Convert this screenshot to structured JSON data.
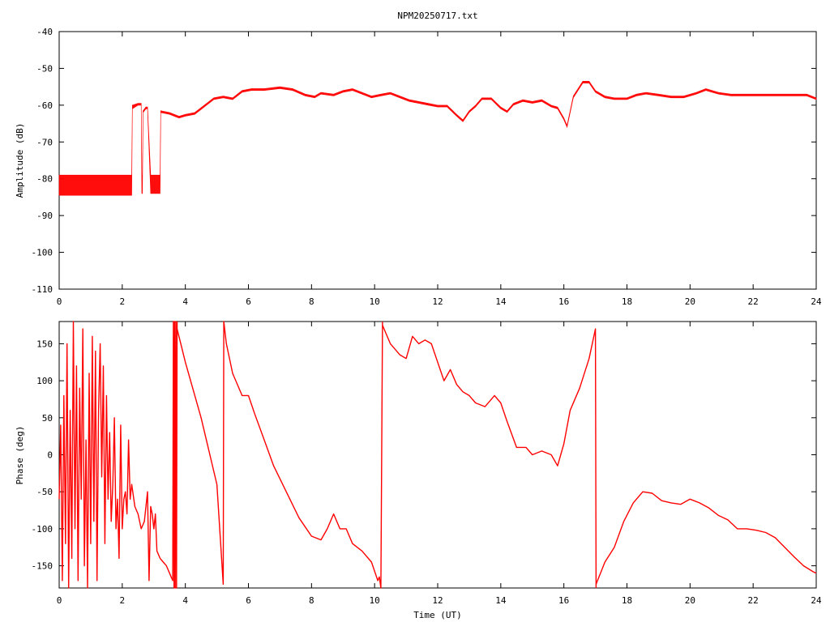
{
  "chart_data": [
    {
      "type": "line",
      "title": "NPM20250717.txt",
      "xlabel": "",
      "ylabel": "Amplitude (dB)",
      "xlim": [
        0,
        24
      ],
      "ylim": [
        -110,
        -40
      ],
      "xticks": [
        "0",
        "2",
        "4",
        "6",
        "8",
        "10",
        "12",
        "14",
        "16",
        "18",
        "20",
        "22",
        "24"
      ],
      "yticks": [
        "-40",
        "-50",
        "-60",
        "-70",
        "-80",
        "-90",
        "-100",
        "-110"
      ],
      "grid": false,
      "color": "#ff0000",
      "series": [
        {
          "x": [
            0,
            0.5,
            1,
            1.5,
            2,
            2.3,
            2.32,
            2.5,
            2.6,
            2.62,
            2.64,
            2.66,
            2.75,
            2.8,
            2.9,
            3.0,
            3.2,
            3.22,
            3.5,
            3.8,
            4.0,
            4.3,
            4.6,
            4.9,
            5.2,
            5.5,
            5.8,
            6.1,
            6.5,
            7.0,
            7.4,
            7.8,
            8.1,
            8.3,
            8.7,
            9.0,
            9.3,
            9.6,
            9.9,
            10.2,
            10.5,
            10.8,
            11.1,
            11.4,
            11.7,
            12.0,
            12.3,
            12.6,
            12.8,
            13.0,
            13.2,
            13.4,
            13.7,
            14.0,
            14.2,
            14.4,
            14.7,
            15.0,
            15.3,
            15.6,
            15.8,
            16.0,
            16.1,
            16.3,
            16.6,
            16.8,
            17.0,
            17.3,
            17.6,
            18.0,
            18.3,
            18.6,
            19.0,
            19.4,
            19.8,
            20.2,
            20.5,
            20.9,
            21.3,
            21.7,
            22.1,
            22.5,
            22.9,
            23.3,
            23.7,
            24.0
          ],
          "amp_low": [
            -84.5,
            -84.5,
            -84.5,
            -84.5,
            -84.5,
            -84.5,
            -61,
            -60,
            -60,
            -84,
            -84,
            -62,
            -61,
            -61,
            -84,
            -84,
            -84,
            -62,
            -62.5,
            -63.5,
            -63,
            -62.5,
            -60.5,
            -58.5,
            -58,
            -58.5,
            -56.5,
            -56,
            -56,
            -55.5,
            -56,
            -57.5,
            -58,
            -57,
            -57.5,
            -56.5,
            -56,
            -57,
            -58,
            -57.5,
            -57,
            -58,
            -59,
            -59.5,
            -60,
            -60.5,
            -60.5,
            -63,
            -64.5,
            -62,
            -60.5,
            -58.5,
            -58.5,
            -61,
            -62,
            -60,
            -59,
            -59.5,
            -59,
            -60.5,
            -61,
            -64,
            -66,
            -58,
            -54,
            -54,
            -56.5,
            -58,
            -58.5,
            -58.5,
            -57.5,
            -57,
            -57.5,
            -58,
            -58,
            -57,
            -56,
            -57,
            -57.5,
            -57.5,
            -57.5,
            -57.5,
            -57.5,
            -57.5,
            -57.5,
            -58.5
          ],
          "amp_high": [
            -79,
            -79,
            -79,
            -79,
            -79,
            -79,
            -60,
            -59.5,
            -59.5,
            -79,
            -79,
            -61.5,
            -60.5,
            -60.5,
            -79,
            -79,
            -79,
            -61.5,
            -62,
            -63,
            -62.5,
            -62,
            -60,
            -58,
            -57.5,
            -58,
            -56,
            -55.5,
            -55.5,
            -55,
            -55.5,
            -57,
            -57.5,
            -56.5,
            -57,
            -56,
            -55.5,
            -56.5,
            -57.5,
            -57,
            -56.5,
            -57.5,
            -58.5,
            -59,
            -59.5,
            -60,
            -60,
            -62.5,
            -64,
            -61.5,
            -60,
            -58,
            -58,
            -60.5,
            -61.5,
            -59.5,
            -58.5,
            -59,
            -58.5,
            -60,
            -60.5,
            -63.5,
            -65.5,
            -57.5,
            -53.5,
            -53.5,
            -56,
            -57.5,
            -58,
            -58,
            -57,
            -56.5,
            -57,
            -57.5,
            -57.5,
            -56.5,
            -55.5,
            -56.5,
            -57,
            -57,
            -57,
            -57,
            -57,
            -57,
            -57,
            -58
          ]
        }
      ]
    },
    {
      "type": "line",
      "title": "",
      "xlabel": "Time (UT)",
      "ylabel": "Phase (deg)",
      "xlim": [
        0,
        24
      ],
      "ylim": [
        -180,
        180
      ],
      "xticks": [
        "0",
        "2",
        "4",
        "6",
        "8",
        "10",
        "12",
        "14",
        "16",
        "18",
        "20",
        "22",
        "24"
      ],
      "yticks": [
        "150",
        "100",
        "50",
        "0",
        "-50",
        "-100",
        "-150"
      ],
      "ytick_values": [
        150,
        100,
        50,
        0,
        -50,
        -100,
        -150
      ],
      "grid": false,
      "color": "#ff0000",
      "series": [
        {
          "x": [
            0,
            0.05,
            0.1,
            0.15,
            0.2,
            0.25,
            0.3,
            0.35,
            0.4,
            0.45,
            0.5,
            0.55,
            0.6,
            0.65,
            0.7,
            0.75,
            0.8,
            0.85,
            0.9,
            0.95,
            1.0,
            1.05,
            1.1,
            1.15,
            1.2,
            1.25,
            1.3,
            1.35,
            1.4,
            1.45,
            1.5,
            1.55,
            1.6,
            1.65,
            1.7,
            1.75,
            1.8,
            1.85,
            1.9,
            1.95,
            2.0,
            2.05,
            2.1,
            2.15,
            2.2,
            2.25,
            2.3,
            2.4,
            2.5,
            2.6,
            2.7,
            2.8,
            2.85,
            2.9,
            2.95,
            3.0,
            3.05,
            3.1,
            3.2,
            3.3,
            3.4,
            3.5,
            3.6,
            3.62,
            3.64,
            3.66,
            3.68,
            3.7,
            3.72,
            3.74
          ],
          "y": [
            -60,
            40,
            -170,
            80,
            -120,
            150,
            -180,
            60,
            -140,
            180,
            -100,
            120,
            -170,
            90,
            -60,
            170,
            -150,
            20,
            -180,
            110,
            -120,
            160,
            -90,
            140,
            -170,
            60,
            150,
            -30,
            120,
            -120,
            80,
            -60,
            30,
            -90,
            -40,
            50,
            -100,
            -60,
            -140,
            40,
            -100,
            -60,
            -50,
            -80,
            20,
            -60,
            -40,
            -70,
            -80,
            -100,
            -90,
            -50,
            -170,
            -70,
            -80,
            -100,
            -80,
            -130,
            -140,
            -145,
            -150,
            -160,
            -170,
            180,
            -180,
            180,
            -180,
            180,
            -180,
            180
          ]
        },
        {
          "x": [
            3.74,
            4.0,
            4.5,
            5.0,
            5.2,
            5.22,
            5.3,
            5.5,
            5.8,
            6.0,
            6.2,
            6.5,
            6.8,
            7.2,
            7.6,
            8.0,
            8.3,
            8.5,
            8.7,
            8.9,
            9.1,
            9.3,
            9.6,
            9.9,
            10.1,
            10.15,
            10.2,
            10.25
          ],
          "y": [
            170,
            125,
            50,
            -40,
            -175,
            180,
            150,
            110,
            80,
            80,
            55,
            20,
            -15,
            -50,
            -85,
            -110,
            -115,
            -100,
            -80,
            -100,
            -100,
            -120,
            -130,
            -145,
            -170,
            -165,
            -180,
            180
          ]
        },
        {
          "x": [
            10.25,
            10.5,
            10.8,
            11.0,
            11.2,
            11.4,
            11.6,
            11.8,
            12.0,
            12.2,
            12.4,
            12.6,
            12.8,
            13.0,
            13.2,
            13.5,
            13.8,
            14.0,
            14.2,
            14.5,
            14.8,
            15.0,
            15.3,
            15.6,
            15.8,
            16.0,
            16.2,
            16.5,
            16.8,
            17.0,
            17.02
          ],
          "y": [
            175,
            150,
            135,
            130,
            160,
            150,
            155,
            150,
            125,
            100,
            115,
            95,
            85,
            80,
            70,
            65,
            80,
            70,
            45,
            10,
            10,
            0,
            5,
            0,
            -15,
            15,
            60,
            90,
            130,
            170,
            -180
          ]
        },
        {
          "x": [
            17.02,
            17.3,
            17.6,
            17.9,
            18.2,
            18.5,
            18.8,
            19.1,
            19.4,
            19.7,
            20.0,
            20.3,
            20.6,
            20.9,
            21.2,
            21.5,
            21.8,
            22.1,
            22.4,
            22.7,
            23.0,
            23.3,
            23.6,
            23.9,
            24.0
          ],
          "y": [
            -175,
            -145,
            -125,
            -90,
            -65,
            -50,
            -52,
            -62,
            -65,
            -67,
            -60,
            -65,
            -72,
            -82,
            -88,
            -100,
            -100,
            -102,
            -105,
            -112,
            -125,
            -138,
            -150,
            -158,
            -160
          ]
        }
      ]
    }
  ]
}
